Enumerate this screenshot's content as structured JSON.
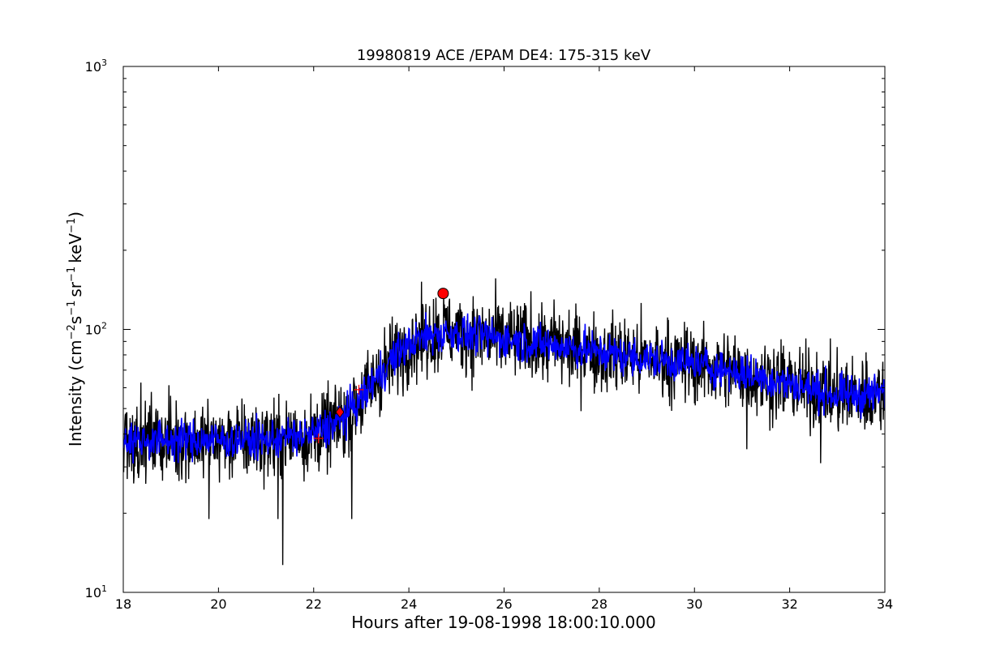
{
  "chart_data": {
    "type": "line",
    "title": "19980819 ACE /EPAM DE4: 175-315 keV",
    "xlabel": "Hours after 19-08-1998 18:00:10.000",
    "ylabel": {
      "prefix": "Intensity (cm",
      "sup1": "−2",
      "part2": "s",
      "sup2": "−1",
      "part3": "sr",
      "sup3": "−1",
      "part4": "keV",
      "sup4": "−1",
      "suffix": ")"
    },
    "xlim": [
      18,
      34
    ],
    "ylim": [
      10,
      1000
    ],
    "y_scale": "log",
    "grid": false,
    "x_ticks": [
      18,
      20,
      22,
      24,
      26,
      28,
      30,
      32,
      34
    ],
    "x_tick_labels": [
      "18",
      "20",
      "22",
      "24",
      "26",
      "28",
      "30",
      "32",
      "34"
    ],
    "y_ticks": [
      {
        "value": 10,
        "base": "10",
        "exp": "1"
      },
      {
        "value": 100,
        "base": "10",
        "exp": "2"
      },
      {
        "value": 1000,
        "base": "10",
        "exp": "3"
      }
    ],
    "series": [
      {
        "color": "#000000",
        "style": "raw",
        "profile": [
          [
            18.0,
            38
          ],
          [
            19.0,
            38
          ],
          [
            20.0,
            38
          ],
          [
            21.0,
            38
          ],
          [
            22.0,
            40
          ],
          [
            22.5,
            44
          ],
          [
            23.0,
            54
          ],
          [
            23.5,
            72
          ],
          [
            24.0,
            88
          ],
          [
            24.5,
            96
          ],
          [
            25.0,
            97
          ],
          [
            26.0,
            92
          ],
          [
            27.0,
            87
          ],
          [
            28.0,
            82
          ],
          [
            29.0,
            77
          ],
          [
            30.0,
            74
          ],
          [
            31.0,
            68
          ],
          [
            32.0,
            62
          ],
          [
            33.0,
            56
          ],
          [
            34.0,
            57
          ]
        ],
        "outliers": [
          [
            21.35,
            12.7
          ],
          [
            19.8,
            19
          ],
          [
            22.8,
            19
          ],
          [
            21.25,
            19
          ],
          [
            24.73,
            137
          ],
          [
            27.05,
            130
          ],
          [
            23.05,
            61
          ],
          [
            31.1,
            35
          ],
          [
            32.65,
            31
          ]
        ]
      },
      {
        "color": "#0000ff",
        "style": "smoothed",
        "profile": [
          [
            18.0,
            38
          ],
          [
            19.0,
            38
          ],
          [
            20.0,
            38
          ],
          [
            21.0,
            38
          ],
          [
            22.0,
            40
          ],
          [
            22.5,
            44
          ],
          [
            23.0,
            54
          ],
          [
            23.5,
            72
          ],
          [
            24.0,
            88
          ],
          [
            24.5,
            96
          ],
          [
            25.0,
            97
          ],
          [
            26.0,
            92
          ],
          [
            27.0,
            87
          ],
          [
            28.0,
            82
          ],
          [
            29.0,
            77
          ],
          [
            30.0,
            74
          ],
          [
            31.0,
            68
          ],
          [
            32.0,
            62
          ],
          [
            33.0,
            56
          ],
          [
            34.0,
            57
          ]
        ]
      }
    ],
    "markers": [
      {
        "type": "circle",
        "color": "#ff0000",
        "x": 24.72,
        "y": 137
      },
      {
        "type": "diamond",
        "color": "#ff0000",
        "x": 22.55,
        "y": 48.5
      },
      {
        "type": "plus",
        "color": "#ff0000",
        "x": 22.1,
        "y": 38.5
      },
      {
        "type": "plus",
        "color": "#ff0000",
        "x": 22.95,
        "y": 59
      }
    ]
  }
}
